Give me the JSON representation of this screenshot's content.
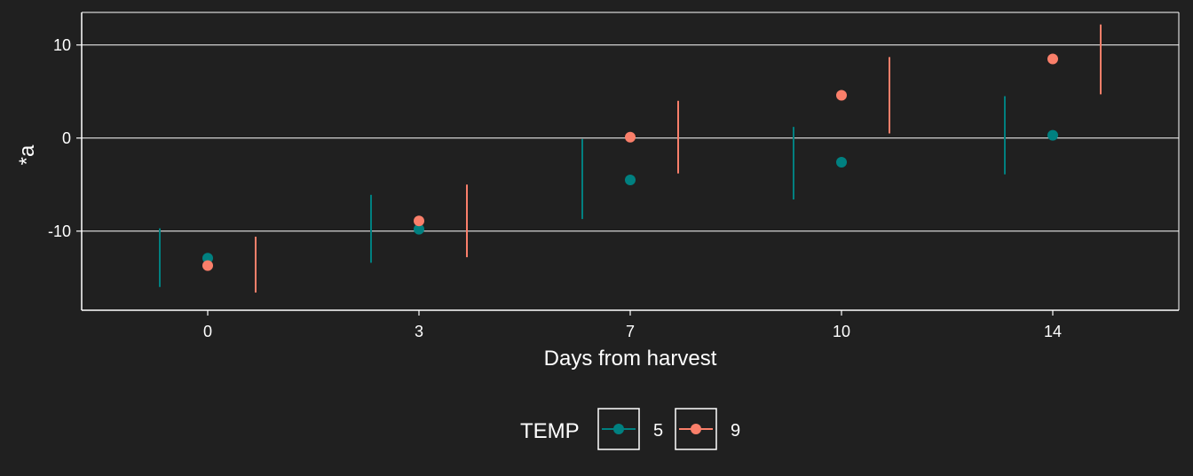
{
  "chart_data": {
    "type": "scatter",
    "xlabel": "Days from harvest",
    "ylabel": "*a",
    "categories": [
      "0",
      "3",
      "7",
      "10",
      "14"
    ],
    "y_ticks": [
      "-10",
      "0",
      "10"
    ],
    "y_tick_values": [
      -10,
      0,
      10
    ],
    "ylim": [
      -18.5,
      13.5
    ],
    "grid": "horizontal",
    "legend": {
      "title": "TEMP",
      "position": "bottom",
      "entries": [
        "5",
        "9"
      ]
    },
    "series": [
      {
        "name": "5",
        "color": "#008080",
        "values": [
          -12.9,
          -9.8,
          -4.5,
          -2.6,
          0.3
        ],
        "intervals": [
          [
            -16.0,
            -9.7
          ],
          [
            -13.4,
            -6.1
          ],
          [
            -8.7,
            -0.1
          ],
          [
            -6.6,
            1.2
          ],
          [
            -3.9,
            4.5
          ]
        ]
      },
      {
        "name": "9",
        "color": "#FA7F6A",
        "values": [
          -13.7,
          -8.9,
          0.1,
          4.6,
          8.5
        ],
        "intervals": [
          [
            -16.6,
            -10.6
          ],
          [
            -12.8,
            -5.0
          ],
          [
            -3.8,
            4.0
          ],
          [
            0.5,
            8.7
          ],
          [
            4.7,
            12.2
          ]
        ]
      }
    ]
  }
}
